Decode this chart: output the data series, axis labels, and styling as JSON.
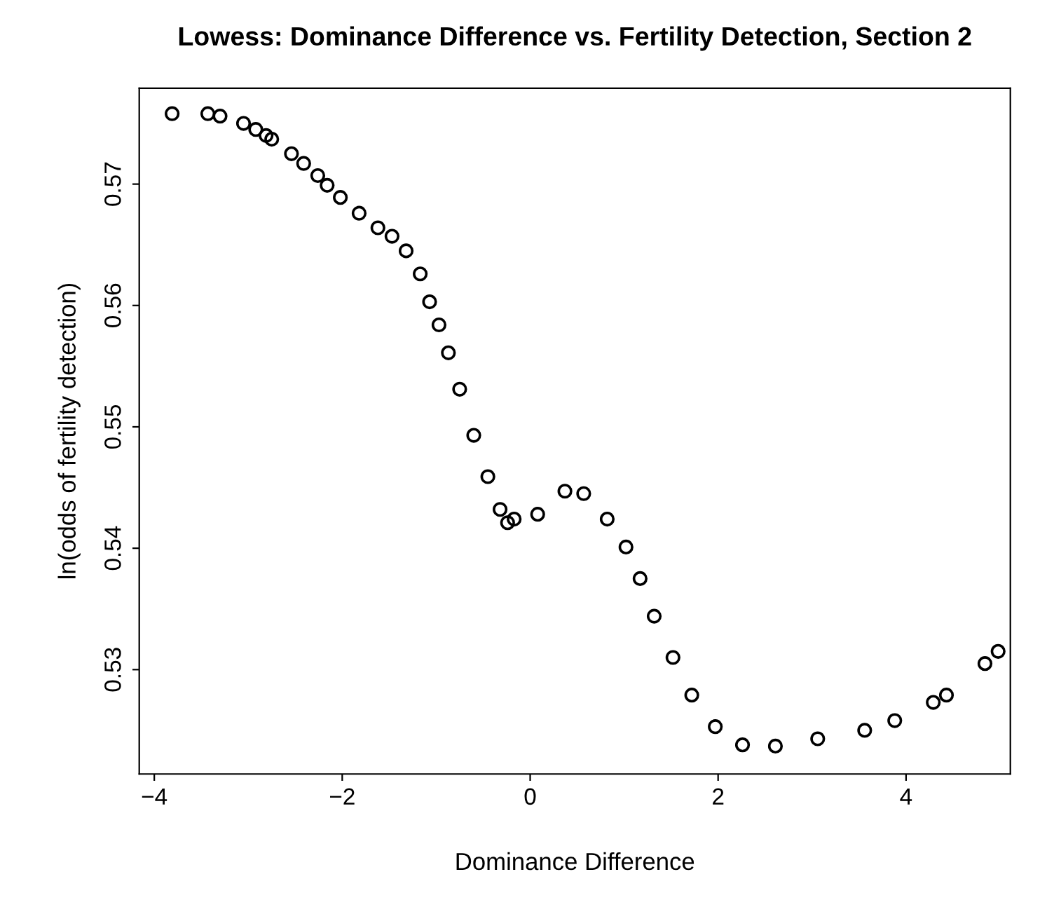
{
  "chart_data": {
    "type": "scatter",
    "title": "Lowess: Dominance Difference vs. Fertility Detection, Section 2",
    "xlabel": "Dominance Difference",
    "ylabel": "ln(odds of fertility detection)",
    "x": [
      -3.81,
      -3.43,
      -3.3,
      -3.05,
      -2.92,
      -2.81,
      -2.75,
      -2.54,
      -2.41,
      -2.26,
      -2.16,
      -2.02,
      -1.82,
      -1.62,
      -1.47,
      -1.32,
      -1.17,
      -1.07,
      -0.97,
      -0.87,
      -0.75,
      -0.6,
      -0.45,
      -0.32,
      -0.24,
      -0.17,
      0.08,
      0.37,
      0.57,
      0.82,
      1.02,
      1.17,
      1.32,
      1.52,
      1.72,
      1.97,
      2.26,
      2.61,
      3.06,
      3.56,
      3.88,
      4.29,
      4.43,
      4.84,
      4.98
    ],
    "series": [
      {
        "color": "#000000",
        "values": [
          0.5758,
          0.5758,
          0.5756,
          0.575,
          0.5745,
          0.574,
          0.5737,
          0.5725,
          0.5717,
          0.5707,
          0.5699,
          0.5689,
          0.5676,
          0.5664,
          0.5657,
          0.5645,
          0.5626,
          0.5603,
          0.5584,
          0.5561,
          0.5531,
          0.5493,
          0.5459,
          0.5432,
          0.5421,
          0.5424,
          0.5428,
          0.5447,
          0.5445,
          0.5424,
          0.5401,
          0.5375,
          0.5344,
          0.531,
          0.5279,
          0.5253,
          0.5238,
          0.5237,
          0.5243,
          0.525,
          0.5258,
          0.5273,
          0.5279,
          0.5305,
          0.5315
        ]
      }
    ],
    "xlim": [
      -4.16,
      5.11
    ],
    "ylim": [
      0.5214,
      0.5779
    ],
    "xticks": [
      {
        "value": -4,
        "label": "−4"
      },
      {
        "value": -2,
        "label": "−2"
      },
      0,
      2,
      4
    ],
    "yticks": [
      0.53,
      0.54,
      0.55,
      0.56,
      0.57
    ],
    "marker": "circle",
    "grid": false,
    "legend": false
  }
}
